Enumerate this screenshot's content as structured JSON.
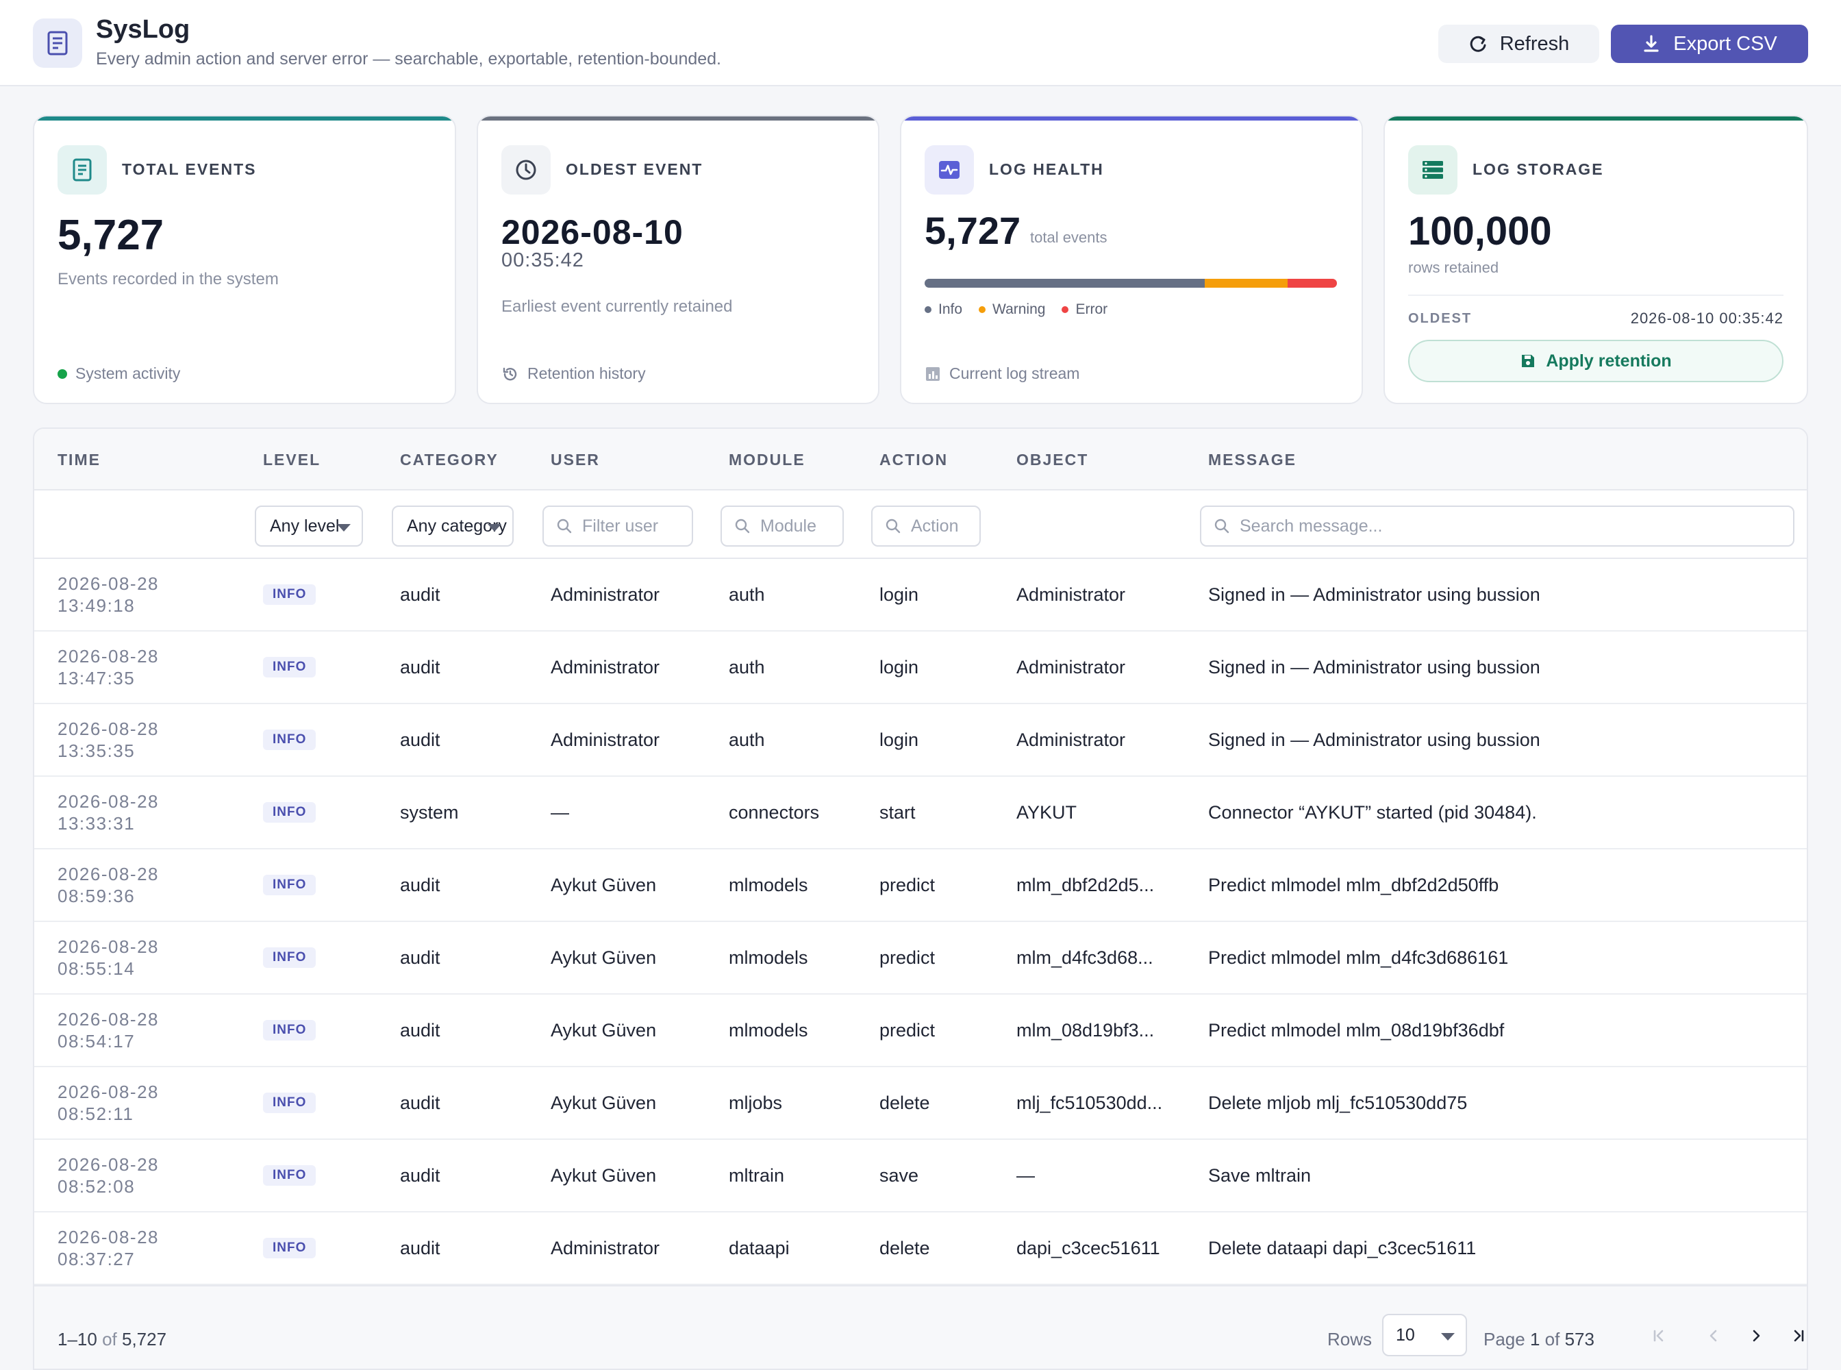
{
  "header": {
    "title": "SysLog",
    "subtitle": "Every admin action and server error — searchable, exportable, retention-bounded.",
    "refresh_label": "Refresh",
    "export_label": "Export CSV"
  },
  "cards": {
    "total_events": {
      "label": "TOTAL EVENTS",
      "value": "5,727",
      "subtitle": "Events recorded in the system",
      "footer": "System activity",
      "accent": "#1f8a8a"
    },
    "oldest_event": {
      "label": "OLDEST EVENT",
      "date": "2026-08-10",
      "time": "00:35:42",
      "subtitle": "Earliest event currently retained",
      "footer": "Retention history",
      "accent": "#6b7280"
    },
    "log_health": {
      "label": "LOG HEALTH",
      "value": "5,727",
      "value_suffix": "total events",
      "legend": {
        "info": "Info",
        "warning": "Warning",
        "error": "Error"
      },
      "distribution": {
        "info": 0.68,
        "warning": 0.2,
        "error": 0.12
      },
      "colors": {
        "info": "#667085",
        "warning": "#f59e0b",
        "error": "#ef4444"
      },
      "footer": "Current log stream",
      "accent": "#5b5fd6"
    },
    "log_storage": {
      "label": "LOG STORAGE",
      "value": "100,000",
      "subtitle": "rows retained",
      "oldest_label": "OLDEST",
      "oldest_value": "2026-08-10 00:35:42",
      "apply_label": "Apply retention",
      "accent": "#137a5e"
    }
  },
  "table": {
    "columns": {
      "time": "TIME",
      "level": "LEVEL",
      "category": "CATEGORY",
      "user": "USER",
      "module": "MODULE",
      "action": "ACTION",
      "object": "OBJECT",
      "message": "MESSAGE"
    },
    "filters": {
      "level": "Any level",
      "category": "Any category",
      "user_placeholder": "Filter user",
      "module_placeholder": "Module",
      "action_placeholder": "Action",
      "message_placeholder": "Search message..."
    },
    "rows": [
      {
        "date": "2026-08-28",
        "time": "13:49:18",
        "level": "INFO",
        "category": "audit",
        "user": "Administrator",
        "module": "auth",
        "action": "login",
        "object": "Administrator",
        "message": "Signed in — Administrator using bussion"
      },
      {
        "date": "2026-08-28",
        "time": "13:47:35",
        "level": "INFO",
        "category": "audit",
        "user": "Administrator",
        "module": "auth",
        "action": "login",
        "object": "Administrator",
        "message": "Signed in — Administrator using bussion"
      },
      {
        "date": "2026-08-28",
        "time": "13:35:35",
        "level": "INFO",
        "category": "audit",
        "user": "Administrator",
        "module": "auth",
        "action": "login",
        "object": "Administrator",
        "message": "Signed in — Administrator using bussion"
      },
      {
        "date": "2026-08-28",
        "time": "13:33:31",
        "level": "INFO",
        "category": "system",
        "user": "—",
        "module": "connectors",
        "action": "start",
        "object": "AYKUT",
        "message": "Connector “AYKUT” started (pid 30484)."
      },
      {
        "date": "2026-08-28",
        "time": "08:59:36",
        "level": "INFO",
        "category": "audit",
        "user": "Aykut Güven",
        "module": "mlmodels",
        "action": "predict",
        "object": "mlm_dbf2d2d5...",
        "message": "Predict mlmodel mlm_dbf2d2d50ffb"
      },
      {
        "date": "2026-08-28",
        "time": "08:55:14",
        "level": "INFO",
        "category": "audit",
        "user": "Aykut Güven",
        "module": "mlmodels",
        "action": "predict",
        "object": "mlm_d4fc3d68...",
        "message": "Predict mlmodel mlm_d4fc3d686161"
      },
      {
        "date": "2026-08-28",
        "time": "08:54:17",
        "level": "INFO",
        "category": "audit",
        "user": "Aykut Güven",
        "module": "mlmodels",
        "action": "predict",
        "object": "mlm_08d19bf3...",
        "message": "Predict mlmodel mlm_08d19bf36dbf"
      },
      {
        "date": "2026-08-28",
        "time": "08:52:11",
        "level": "INFO",
        "category": "audit",
        "user": "Aykut Güven",
        "module": "mljobs",
        "action": "delete",
        "object": "mlj_fc510530dd...",
        "message": "Delete mljob mlj_fc510530dd75"
      },
      {
        "date": "2026-08-28",
        "time": "08:52:08",
        "level": "INFO",
        "category": "audit",
        "user": "Aykut Güven",
        "module": "mltrain",
        "action": "save",
        "object": "—",
        "message": "Save mltrain"
      },
      {
        "date": "2026-08-28",
        "time": "08:37:27",
        "level": "INFO",
        "category": "audit",
        "user": "Administrator",
        "module": "dataapi",
        "action": "delete",
        "object": "dapi_c3cec51611",
        "message": "Delete dataapi dapi_c3cec51611"
      }
    ]
  },
  "pagination": {
    "range": "1–10",
    "of_word": "of",
    "total": "5,727",
    "rows_label": "Rows",
    "rows_per_page": "10",
    "page_word": "Page",
    "current_page": "1",
    "total_pages": "573"
  }
}
